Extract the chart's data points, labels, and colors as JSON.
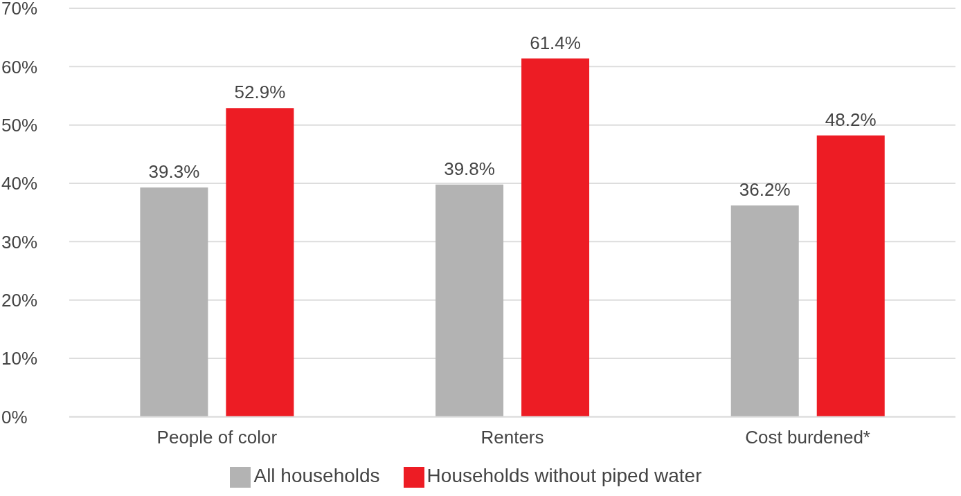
{
  "chart_data": {
    "type": "bar",
    "categories": [
      "People of color",
      "Renters",
      "Cost burdened*"
    ],
    "series": [
      {
        "name": "All households",
        "color": "#b3b3b3",
        "values": [
          39.3,
          39.8,
          36.2
        ],
        "value_labels": [
          "39.3%",
          "39.8%",
          "36.2%"
        ]
      },
      {
        "name": "Households without piped water",
        "color": "#ed1c24",
        "values": [
          52.9,
          61.4,
          48.2
        ],
        "value_labels": [
          "52.9%",
          "61.4%",
          "48.2%"
        ]
      }
    ],
    "ylim": [
      0,
      70
    ],
    "yticks": [
      {
        "value": 0,
        "label": "0%"
      },
      {
        "value": 10,
        "label": "10%"
      },
      {
        "value": 20,
        "label": "20%"
      },
      {
        "value": 30,
        "label": "30%"
      },
      {
        "value": 40,
        "label": "40%"
      },
      {
        "value": 50,
        "label": "50%"
      },
      {
        "value": 60,
        "label": "60%"
      },
      {
        "value": 70,
        "label": "70%"
      }
    ],
    "grid": "y",
    "legend": "bottom"
  }
}
